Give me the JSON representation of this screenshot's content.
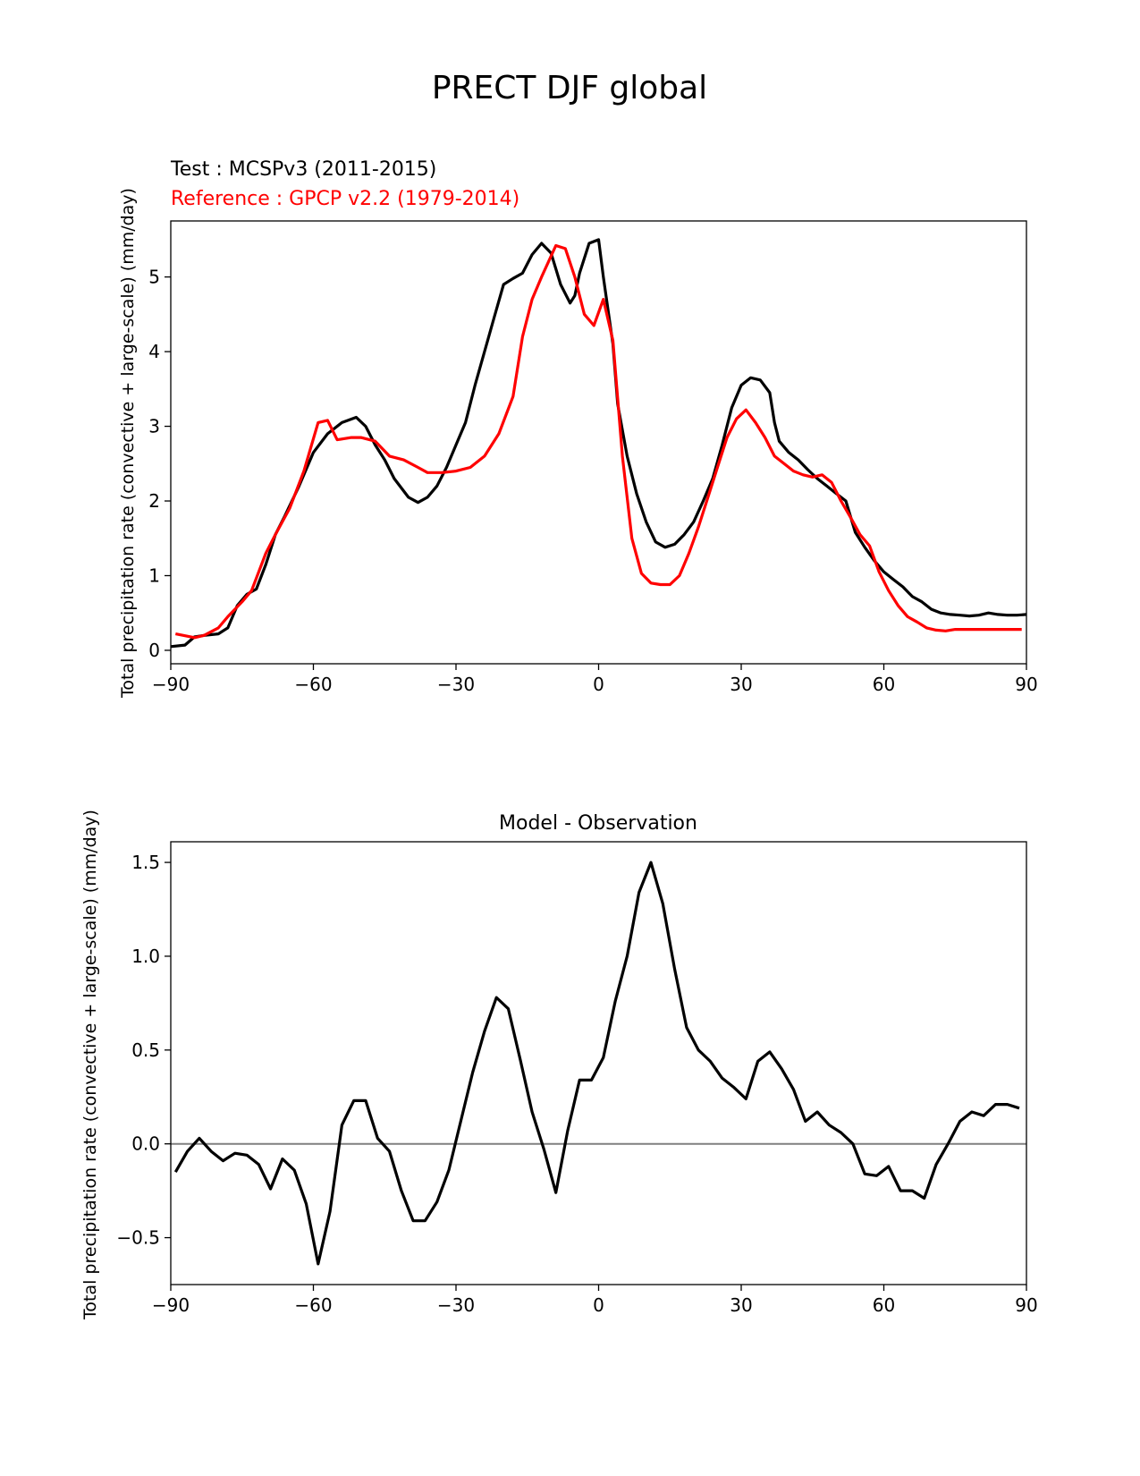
{
  "figure": {
    "title": "PRECT DJF global",
    "test_label": "Test : MCSPv3 (2011-2015)",
    "reference_label": "Reference : GPCP v2.2 (1979-2014)"
  },
  "colors": {
    "test": "#000000",
    "reference": "#ff0000",
    "zero_line": "#808080"
  },
  "chart_data": [
    {
      "type": "line",
      "title": "",
      "xlabel": "",
      "ylabel": "Total precipitation rate (convective + large-scale) (mm/day)",
      "xlim": [
        -90,
        90
      ],
      "ylim": [
        -0.18,
        5.75
      ],
      "xticks": [
        -90,
        -60,
        -30,
        0,
        30,
        60,
        90
      ],
      "xtick_labels": [
        "−90",
        "−60",
        "−30",
        "0",
        "30",
        "60",
        "90"
      ],
      "yticks": [
        0,
        1,
        2,
        3,
        4,
        5
      ],
      "ytick_labels": [
        "0",
        "1",
        "2",
        "3",
        "4",
        "5"
      ],
      "series": [
        {
          "name": "Test : MCSPv3 (2011-2015)",
          "color": "#000000",
          "x": [
            -90,
            -87,
            -85,
            -83,
            -80,
            -78,
            -76,
            -74,
            -72,
            -70,
            -68,
            -66,
            -63,
            -60,
            -57,
            -54,
            -51,
            -49,
            -47,
            -45,
            -43,
            -40,
            -38,
            -36,
            -34,
            -32,
            -30,
            -28,
            -26,
            -24,
            -22,
            -20,
            -18,
            -16,
            -14,
            -12,
            -10,
            -8,
            -6,
            -5,
            -4,
            -2,
            0,
            1,
            3,
            4,
            6,
            8,
            10,
            12,
            14,
            16,
            18,
            20,
            22,
            24,
            26,
            28,
            30,
            32,
            34,
            36,
            37,
            38,
            40,
            42,
            44,
            46,
            48,
            50,
            52,
            54,
            56,
            58,
            60,
            62,
            64,
            66,
            68,
            70,
            72,
            74,
            76,
            78,
            80,
            82,
            84,
            86,
            88,
            90
          ],
          "y": [
            0.05,
            0.07,
            0.18,
            0.2,
            0.22,
            0.3,
            0.6,
            0.75,
            0.82,
            1.15,
            1.55,
            1.8,
            2.2,
            2.65,
            2.9,
            3.05,
            3.12,
            3.0,
            2.75,
            2.55,
            2.3,
            2.05,
            1.98,
            2.05,
            2.2,
            2.45,
            2.75,
            3.05,
            3.55,
            4.0,
            4.45,
            4.9,
            4.98,
            5.05,
            5.3,
            5.45,
            5.32,
            4.9,
            4.65,
            4.75,
            5.05,
            5.45,
            5.5,
            5.0,
            4.1,
            3.3,
            2.6,
            2.1,
            1.72,
            1.45,
            1.38,
            1.42,
            1.55,
            1.72,
            2.0,
            2.3,
            2.75,
            3.25,
            3.55,
            3.65,
            3.62,
            3.45,
            3.05,
            2.8,
            2.65,
            2.55,
            2.42,
            2.3,
            2.2,
            2.1,
            2.0,
            1.58,
            1.38,
            1.2,
            1.05,
            0.95,
            0.85,
            0.72,
            0.65,
            0.55,
            0.5,
            0.48,
            0.47,
            0.46,
            0.47,
            0.5,
            0.48,
            0.47,
            0.47,
            0.48
          ],
          "x_trim_note": ""
        },
        {
          "name": "Reference : GPCP v2.2 (1979-2014)",
          "color": "#ff0000",
          "x": [
            -89,
            -85,
            -83,
            -80,
            -78,
            -75,
            -73,
            -70,
            -68,
            -65,
            -62,
            -59,
            -57,
            -55,
            -52,
            -50,
            -47,
            -44,
            -41,
            -38,
            -36,
            -33,
            -30,
            -27,
            -24,
            -21,
            -18,
            -16,
            -14,
            -12,
            -9,
            -7,
            -5,
            -3,
            -1,
            1,
            3,
            5,
            7,
            9,
            11,
            13,
            15,
            17,
            19,
            21,
            23,
            25,
            27,
            29,
            31,
            33,
            35,
            37,
            39,
            41,
            43,
            45,
            47,
            49,
            51,
            53,
            55,
            57,
            59,
            61,
            63,
            65,
            67,
            69,
            71,
            73,
            75,
            77,
            79,
            81,
            83,
            85,
            87,
            89
          ],
          "y": [
            0.22,
            0.17,
            0.2,
            0.3,
            0.45,
            0.65,
            0.8,
            1.3,
            1.55,
            1.9,
            2.4,
            3.05,
            3.08,
            2.82,
            2.85,
            2.85,
            2.8,
            2.6,
            2.55,
            2.45,
            2.38,
            2.38,
            2.4,
            2.45,
            2.6,
            2.9,
            3.4,
            4.2,
            4.7,
            5.0,
            5.42,
            5.38,
            5.0,
            4.5,
            4.35,
            4.7,
            4.15,
            2.6,
            1.5,
            1.03,
            0.9,
            0.88,
            0.88,
            1.0,
            1.3,
            1.65,
            2.05,
            2.45,
            2.85,
            3.1,
            3.22,
            3.05,
            2.85,
            2.6,
            2.5,
            2.4,
            2.35,
            2.32,
            2.35,
            2.25,
            2.0,
            1.78,
            1.55,
            1.4,
            1.05,
            0.8,
            0.6,
            0.45,
            0.38,
            0.3,
            0.27,
            0.26,
            0.28,
            0.28,
            0.28,
            0.28,
            0.28,
            0.28,
            0.28,
            0.28
          ],
          "x_trim_note": ""
        }
      ]
    },
    {
      "type": "line",
      "title": "Model - Observation",
      "xlabel": "",
      "ylabel": "Total precipitation rate (convective + large-scale) (mm/day)",
      "xlim": [
        -90,
        90
      ],
      "ylim": [
        -0.75,
        1.61
      ],
      "xticks": [
        -90,
        -60,
        -30,
        0,
        30,
        60,
        90
      ],
      "xtick_labels": [
        "−90",
        "−60",
        "−30",
        "0",
        "30",
        "60",
        "90"
      ],
      "yticks": [
        -0.5,
        0.0,
        0.5,
        1.0,
        1.5
      ],
      "ytick_labels": [
        "−0.5",
        "0.0",
        "0.5",
        "1.0",
        "1.5"
      ],
      "zero_line": true,
      "series": [
        {
          "name": "Model - Observation",
          "color": "#000000",
          "x": [
            -89,
            -86.5,
            -84,
            -81.5,
            -79,
            -76.5,
            -74,
            -71.5,
            -69,
            -66.5,
            -64,
            -61.5,
            -59,
            -56.5,
            -54,
            -51.5,
            -49,
            -46.5,
            -44,
            -41.5,
            -39,
            -36.5,
            -34,
            -31.5,
            -29,
            -26.5,
            -24,
            -21.5,
            -19,
            -16.5,
            -14,
            -11.5,
            -9,
            -6.5,
            -4,
            -1.5,
            1,
            3.5,
            6,
            8.5,
            11,
            13.5,
            16,
            18.5,
            21,
            23.5,
            26,
            28.5,
            31,
            33.5,
            36,
            38.5,
            41,
            43.5,
            46,
            48.5,
            51,
            53.5,
            56,
            58.5,
            61,
            63.5,
            66,
            68.5,
            71,
            73.5,
            76,
            78.5,
            81,
            83.5,
            86,
            88.5
          ],
          "y": [
            -0.15,
            -0.04,
            0.03,
            -0.04,
            -0.09,
            -0.05,
            -0.06,
            -0.11,
            -0.24,
            -0.08,
            -0.14,
            -0.32,
            -0.64,
            -0.36,
            0.1,
            0.23,
            0.23,
            0.03,
            -0.04,
            -0.25,
            -0.41,
            -0.41,
            -0.31,
            -0.14,
            0.12,
            0.38,
            0.6,
            0.78,
            0.72,
            0.45,
            0.17,
            -0.03,
            -0.26,
            0.07,
            0.34,
            0.34,
            0.46,
            0.76,
            1.0,
            1.34,
            1.5,
            1.28,
            0.93,
            0.62,
            0.5,
            0.44,
            0.35,
            0.3,
            0.24,
            0.44,
            0.49,
            0.4,
            0.29,
            0.12,
            0.17,
            0.1,
            0.06,
            0.0,
            -0.16,
            -0.17,
            -0.12,
            -0.25,
            -0.25,
            -0.29,
            -0.11,
            0.0,
            0.12,
            0.17,
            0.15,
            0.21,
            0.21,
            0.19
          ]
        }
      ]
    }
  ]
}
